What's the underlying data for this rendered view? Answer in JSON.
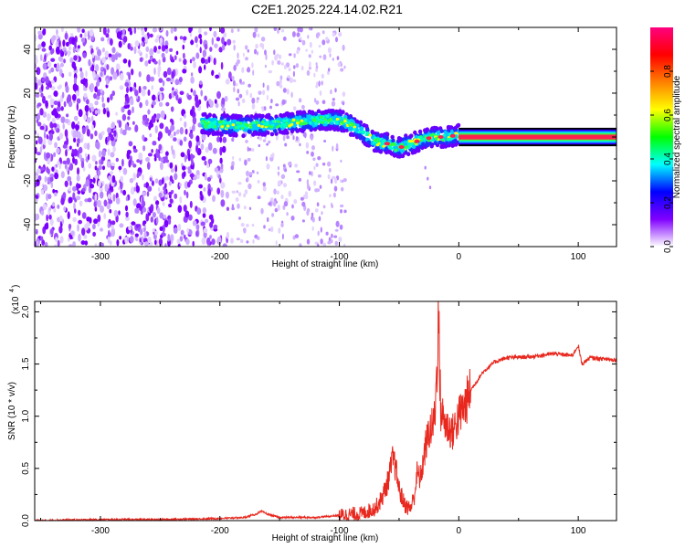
{
  "title": "C2E1.2025.224.14.02.R21",
  "colors": {
    "background": "#ffffff",
    "snr_line": "#e8281e",
    "ridge": "#ff0040"
  },
  "chart_data": [
    {
      "type": "heatmap",
      "name": "spectrogram",
      "xlabel": "Height of straight line (km)",
      "ylabel": "Frequency (Hz)",
      "xlim": [
        -355,
        132
      ],
      "ylim": [
        -50,
        50
      ],
      "xticks": [
        -300,
        -200,
        -100,
        0,
        100
      ],
      "yticks": [
        -40,
        -20,
        0,
        20,
        40
      ],
      "colorbar": {
        "label": "Normalized spectral amplitude",
        "range": [
          0,
          1
        ],
        "ticks": [
          "0.0",
          "0.2",
          "0.4",
          "0.6",
          "0.8"
        ],
        "tick_values": [
          0.0,
          0.2,
          0.4,
          0.6,
          0.8
        ],
        "colormap": [
          "#ffffff",
          "#8000ff",
          "#0000ff",
          "#00ffff",
          "#00ff00",
          "#ffff00",
          "#ff8000",
          "#ff0000",
          "#ff0080"
        ]
      },
      "regions": [
        {
          "x": [
            -355,
            -190
          ],
          "freq": [
            -50,
            50
          ],
          "amplitude": 0.15,
          "pattern": "dense speckle"
        },
        {
          "x": [
            -190,
            -95
          ],
          "freq": [
            -50,
            50
          ],
          "amplitude": 0.05,
          "pattern": "sparse speckle"
        },
        {
          "x": [
            -215,
            0
          ],
          "freq": [
            -10,
            15
          ],
          "amplitude": 0.45,
          "pattern": "signal band"
        },
        {
          "x": [
            0,
            132
          ],
          "freq": [
            0,
            0
          ],
          "amplitude": 1.0,
          "pattern": "steady tone"
        }
      ],
      "ridge": [
        {
          "x": -215,
          "f": 6
        },
        {
          "x": -180,
          "f": 5
        },
        {
          "x": -150,
          "f": 6
        },
        {
          "x": -110,
          "f": 8
        },
        {
          "x": -95,
          "f": 7
        },
        {
          "x": -80,
          "f": 2
        },
        {
          "x": -70,
          "f": -2
        },
        {
          "x": -60,
          "f": -3
        },
        {
          "x": -50,
          "f": -5
        },
        {
          "x": -40,
          "f": -3
        },
        {
          "x": -30,
          "f": -1
        },
        {
          "x": -20,
          "f": 0
        },
        {
          "x": -10,
          "f": 0
        },
        {
          "x": 0,
          "f": 1
        },
        {
          "x": 132,
          "f": 0
        }
      ]
    },
    {
      "type": "line",
      "name": "snr",
      "xlabel": "Height of straight line (km)",
      "ylabel": "SNR (10 * v/v)",
      "y_scale_label": "(x10",
      "y_scale_exponent": "4",
      "xlim": [
        -355,
        132
      ],
      "ylim": [
        0,
        2.1
      ],
      "xticks": [
        -300,
        -200,
        -100,
        0,
        100
      ],
      "yticks": [
        "0.0",
        "0.5",
        "1.0",
        "1.5",
        "2.0"
      ],
      "ytick_values": [
        0,
        0.5,
        1.0,
        1.5,
        2.0
      ],
      "series": [
        {
          "x": [
            -355,
            -300,
            -250,
            -200,
            -180,
            -170,
            -165,
            -160,
            -150,
            -120,
            -100,
            -90,
            -80,
            -70,
            -65,
            -60,
            -57,
            -55,
            -52,
            -50,
            -47,
            -45,
            -42,
            -40,
            -37,
            -35,
            -32,
            -30,
            -28,
            -25,
            -22,
            -20,
            -18,
            -17,
            -16,
            -15,
            -12,
            -10,
            -5,
            0,
            5,
            10,
            20,
            30,
            40,
            60,
            80,
            95,
            100,
            103,
            110,
            120,
            132
          ],
          "y": [
            0.0,
            0.01,
            0.01,
            0.02,
            0.03,
            0.06,
            0.09,
            0.06,
            0.03,
            0.03,
            0.05,
            0.06,
            0.07,
            0.12,
            0.2,
            0.35,
            0.5,
            0.6,
            0.45,
            0.3,
            0.2,
            0.15,
            0.12,
            0.13,
            0.25,
            0.45,
            0.4,
            0.55,
            0.7,
            0.85,
            0.9,
            1.0,
            1.55,
            2.05,
            1.4,
            1.05,
            0.95,
            0.9,
            0.85,
            1.0,
            1.1,
            1.25,
            1.42,
            1.52,
            1.56,
            1.57,
            1.6,
            1.58,
            1.68,
            1.5,
            1.56,
            1.55,
            1.54
          ]
        }
      ]
    }
  ]
}
